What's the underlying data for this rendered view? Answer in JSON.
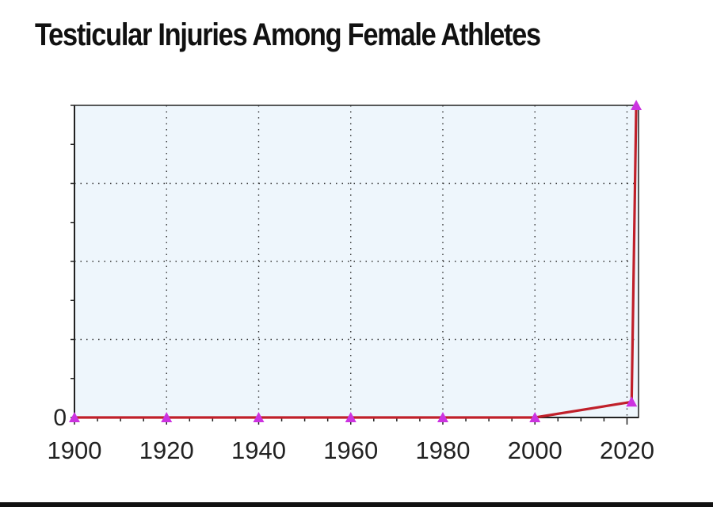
{
  "chart_data": {
    "type": "line",
    "title": "Testicular Injuries Among Female Athletes",
    "xlabel": "",
    "ylabel": "",
    "x": [
      1900,
      1920,
      1940,
      1960,
      1980,
      2000,
      2021,
      2022
    ],
    "y": [
      0,
      0,
      0,
      0,
      0,
      0,
      0.05,
      1.0
    ],
    "xlim": [
      1900,
      2022.5
    ],
    "ylim": [
      0,
      1.0
    ],
    "x_ticks": [
      1900,
      1920,
      1940,
      1960,
      1980,
      2000,
      2020
    ],
    "y_ticks": [
      0
    ],
    "grid": true,
    "legend": "none",
    "colors": {
      "line": "#c0202a",
      "marker": "#cc33e0",
      "plot_background": "#eef6fc",
      "grid": "#333333",
      "axis": "#222222"
    }
  }
}
